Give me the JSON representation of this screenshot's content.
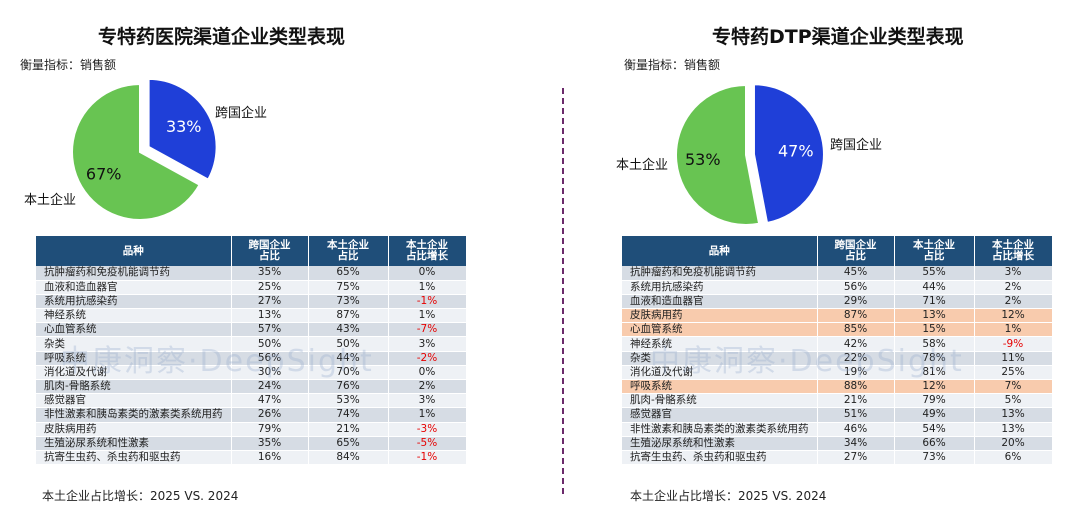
{
  "colors": {
    "cross": "#1f3fd8",
    "local": "#68c452",
    "header": "#1f4e79",
    "negative": "#e60000",
    "divider": "#6b2a6b",
    "highlight": "#f8cbad"
  },
  "watermark": "中康洞察·DeepSight",
  "left": {
    "title": "专特药医院渠道企业类型表现",
    "metric": "衡量指标：销售额",
    "pie": {
      "cross_label": "跨国企业",
      "local_label": "本土企业",
      "cross_pct": "33%",
      "local_pct": "67%"
    },
    "headers": [
      "品种",
      "跨国企业\n占比",
      "本土企业\n占比",
      "本土企业\n占比增长"
    ],
    "footnote": "本土企业占比增长：2025 VS. 2024"
  },
  "right": {
    "title": "专特药DTP渠道企业类型表现",
    "metric": "衡量指标：销售额",
    "pie": {
      "cross_label": "跨国企业",
      "local_label": "本土企业",
      "cross_pct": "47%",
      "local_pct": "53%"
    },
    "headers": [
      "品种",
      "跨国企业\n占比",
      "本土企业\n占比",
      "本土企业\n占比增长"
    ],
    "footnote": "本土企业占比增长：2025 VS. 2024"
  },
  "chart_data": [
    {
      "type": "pie",
      "title": "专特药医院渠道企业类型表现",
      "subtitle": "衡量指标：销售额",
      "labels": [
        "跨国企业",
        "本土企业"
      ],
      "values": [
        33,
        67
      ]
    },
    {
      "type": "table",
      "columns": [
        "品种",
        "跨国企业占比",
        "本土企业占比",
        "本土企业占比增长"
      ],
      "rows": [
        [
          "抗肿瘤药和免疫机能调节药",
          "35%",
          "65%",
          "0%"
        ],
        [
          "血液和造血器官",
          "25%",
          "75%",
          "1%"
        ],
        [
          "系统用抗感染药",
          "27%",
          "73%",
          "-1%"
        ],
        [
          "神经系统",
          "13%",
          "87%",
          "1%"
        ],
        [
          "心血管系统",
          "57%",
          "43%",
          "-7%"
        ],
        [
          "杂类",
          "50%",
          "50%",
          "3%"
        ],
        [
          "呼吸系统",
          "56%",
          "44%",
          "-2%"
        ],
        [
          "消化道及代谢",
          "30%",
          "70%",
          "0%"
        ],
        [
          "肌肉-骨骼系统",
          "24%",
          "76%",
          "2%"
        ],
        [
          "感觉器官",
          "47%",
          "53%",
          "3%"
        ],
        [
          "非性激素和胰岛素类的激素类系统用药",
          "26%",
          "74%",
          "1%"
        ],
        [
          "皮肤病用药",
          "79%",
          "21%",
          "-3%"
        ],
        [
          "生殖泌尿系统和性激素",
          "35%",
          "65%",
          "-5%"
        ],
        [
          "抗寄生虫药、杀虫药和驱虫药",
          "16%",
          "84%",
          "-1%"
        ]
      ],
      "highlight_rows": []
    },
    {
      "type": "pie",
      "title": "专特药DTP渠道企业类型表现",
      "subtitle": "衡量指标：销售额",
      "labels": [
        "跨国企业",
        "本土企业"
      ],
      "values": [
        47,
        53
      ]
    },
    {
      "type": "table",
      "columns": [
        "品种",
        "跨国企业占比",
        "本土企业占比",
        "本土企业占比增长"
      ],
      "rows": [
        [
          "抗肿瘤药和免疫机能调节药",
          "45%",
          "55%",
          "3%"
        ],
        [
          "系统用抗感染药",
          "56%",
          "44%",
          "2%"
        ],
        [
          "血液和造血器官",
          "29%",
          "71%",
          "2%"
        ],
        [
          "皮肤病用药",
          "87%",
          "13%",
          "12%"
        ],
        [
          "心血管系统",
          "85%",
          "15%",
          "1%"
        ],
        [
          "神经系统",
          "42%",
          "58%",
          "-9%"
        ],
        [
          "杂类",
          "22%",
          "78%",
          "11%"
        ],
        [
          "消化道及代谢",
          "19%",
          "81%",
          "25%"
        ],
        [
          "呼吸系统",
          "88%",
          "12%",
          "7%"
        ],
        [
          "肌肉-骨骼系统",
          "21%",
          "79%",
          "5%"
        ],
        [
          "感觉器官",
          "51%",
          "49%",
          "13%"
        ],
        [
          "非性激素和胰岛素类的激素类系统用药",
          "46%",
          "54%",
          "13%"
        ],
        [
          "生殖泌尿系统和性激素",
          "34%",
          "66%",
          "20%"
        ],
        [
          "抗寄生虫药、杀虫药和驱虫药",
          "27%",
          "73%",
          "6%"
        ]
      ],
      "highlight_rows": [
        3,
        4,
        8
      ]
    }
  ]
}
